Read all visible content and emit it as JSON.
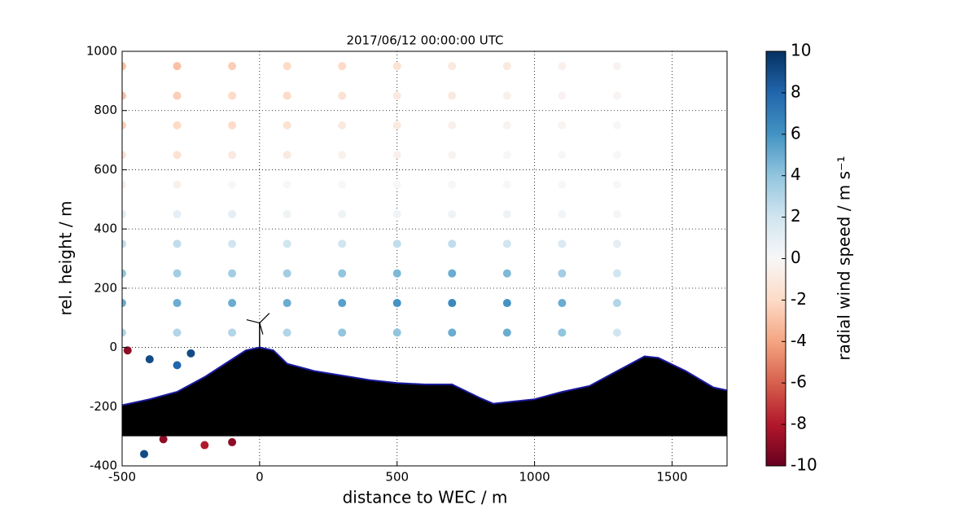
{
  "chart_data": {
    "type": "scatter",
    "title": "2017/06/12 00:00:00 UTC",
    "x_label": "distance to WEC / m",
    "y_label": "rel. height / m",
    "xlim": [
      -500,
      1700
    ],
    "ylim": [
      -400,
      1000
    ],
    "xticks": [
      -500,
      0,
      500,
      1000,
      1500
    ],
    "yticks": [
      -400,
      -200,
      0,
      200,
      400,
      600,
      800,
      1000
    ],
    "grid": true,
    "colormap": [
      "#67001f",
      "#b2182b",
      "#d6604d",
      "#f4a582",
      "#fddbc7",
      "#f7f7f7",
      "#d1e5f0",
      "#92c5de",
      "#4393c3",
      "#2166ac",
      "#053061"
    ],
    "colorbar": {
      "label": "radial wind speed / m s⁻¹",
      "clim": [
        -10,
        10
      ],
      "ticks": [
        -10,
        -8,
        -6,
        -4,
        -2,
        0,
        2,
        4,
        6,
        8,
        10
      ]
    },
    "series": [
      {
        "x": [
          -500,
          -300,
          -100,
          100,
          300,
          500,
          700,
          900,
          1100,
          1300,
          -500,
          -300,
          -100,
          100,
          300,
          500,
          700,
          900,
          1100,
          1300,
          -500,
          -300,
          -100,
          100,
          300,
          500,
          700,
          900,
          1100,
          1300,
          -500,
          -300,
          -100,
          100,
          300,
          500,
          700,
          900,
          1100,
          1300,
          -500,
          -300,
          -100,
          100,
          300,
          500,
          700,
          900,
          1100,
          1300,
          -500,
          -300,
          -100,
          100,
          300,
          500,
          700,
          900,
          1100,
          1300,
          -500,
          -300,
          -100,
          100,
          300,
          500,
          700,
          900,
          1100,
          1300,
          -500,
          -300,
          -100,
          100,
          300,
          500,
          700,
          900,
          1100,
          1300,
          -500,
          -300,
          -100,
          100,
          300,
          500,
          700,
          900,
          1100,
          1300,
          -500,
          -300,
          -100,
          100,
          300,
          500,
          700,
          900,
          1100,
          1300,
          -480,
          -400,
          -300,
          -250,
          -350,
          -200,
          -420,
          -100
        ],
        "y": [
          950,
          950,
          950,
          950,
          950,
          950,
          950,
          950,
          950,
          950,
          850,
          850,
          850,
          850,
          850,
          850,
          850,
          850,
          850,
          850,
          750,
          750,
          750,
          750,
          750,
          750,
          750,
          750,
          750,
          750,
          650,
          650,
          650,
          650,
          650,
          650,
          650,
          650,
          650,
          650,
          550,
          550,
          550,
          550,
          550,
          550,
          550,
          550,
          550,
          550,
          450,
          450,
          450,
          450,
          450,
          450,
          450,
          450,
          450,
          450,
          350,
          350,
          350,
          350,
          350,
          350,
          350,
          350,
          350,
          350,
          250,
          250,
          250,
          250,
          250,
          250,
          250,
          250,
          250,
          250,
          150,
          150,
          150,
          150,
          150,
          150,
          150,
          150,
          150,
          150,
          50,
          50,
          50,
          50,
          50,
          50,
          50,
          50,
          50,
          50,
          -10,
          -40,
          -60,
          -20,
          -310,
          -330,
          -360,
          -320
        ],
        "values": [
          -3,
          -3,
          -2.5,
          -2,
          -2,
          -1.5,
          -1,
          -1,
          -0.5,
          -0.3,
          -3,
          -2.5,
          -2,
          -2,
          -1.5,
          -1,
          -1,
          -0.5,
          -0.3,
          -0.2,
          -2.5,
          -2,
          -2,
          -1.5,
          -1,
          -1,
          -0.5,
          -0.3,
          -0.2,
          0,
          -1.5,
          -1.5,
          -1,
          -1,
          -0.5,
          -0.5,
          -0.3,
          0,
          0,
          0,
          -0.5,
          -0.5,
          0,
          0,
          0,
          0,
          0,
          0,
          0,
          0,
          1,
          1,
          1,
          0.5,
          0.5,
          0.5,
          0.5,
          0.5,
          0.3,
          0.2,
          2.5,
          2.5,
          2,
          2,
          2,
          2.5,
          2.5,
          2,
          1.5,
          1,
          4,
          3.5,
          3.5,
          3.5,
          4,
          4.5,
          5,
          4.5,
          3.5,
          2,
          5,
          5,
          5,
          5,
          5.5,
          6,
          6.5,
          6,
          5,
          3,
          3,
          3,
          3,
          3,
          4,
          4,
          5,
          5,
          4,
          2,
          -9,
          9,
          8,
          9,
          -9,
          -8,
          9,
          -9
        ]
      }
    ],
    "terrain": {
      "x": [
        -500,
        -400,
        -300,
        -200,
        -100,
        -50,
        0,
        50,
        100,
        200,
        300,
        400,
        500,
        600,
        700,
        800,
        850,
        1000,
        1100,
        1200,
        1300,
        1400,
        1450,
        1550,
        1650,
        1700
      ],
      "y": [
        -195,
        -175,
        -150,
        -100,
        -40,
        -10,
        0,
        -10,
        -55,
        -80,
        -95,
        -110,
        -120,
        -125,
        -125,
        -170,
        -190,
        -175,
        -150,
        -130,
        -80,
        -30,
        -35,
        -80,
        -135,
        -145
      ],
      "base": -300
    }
  }
}
